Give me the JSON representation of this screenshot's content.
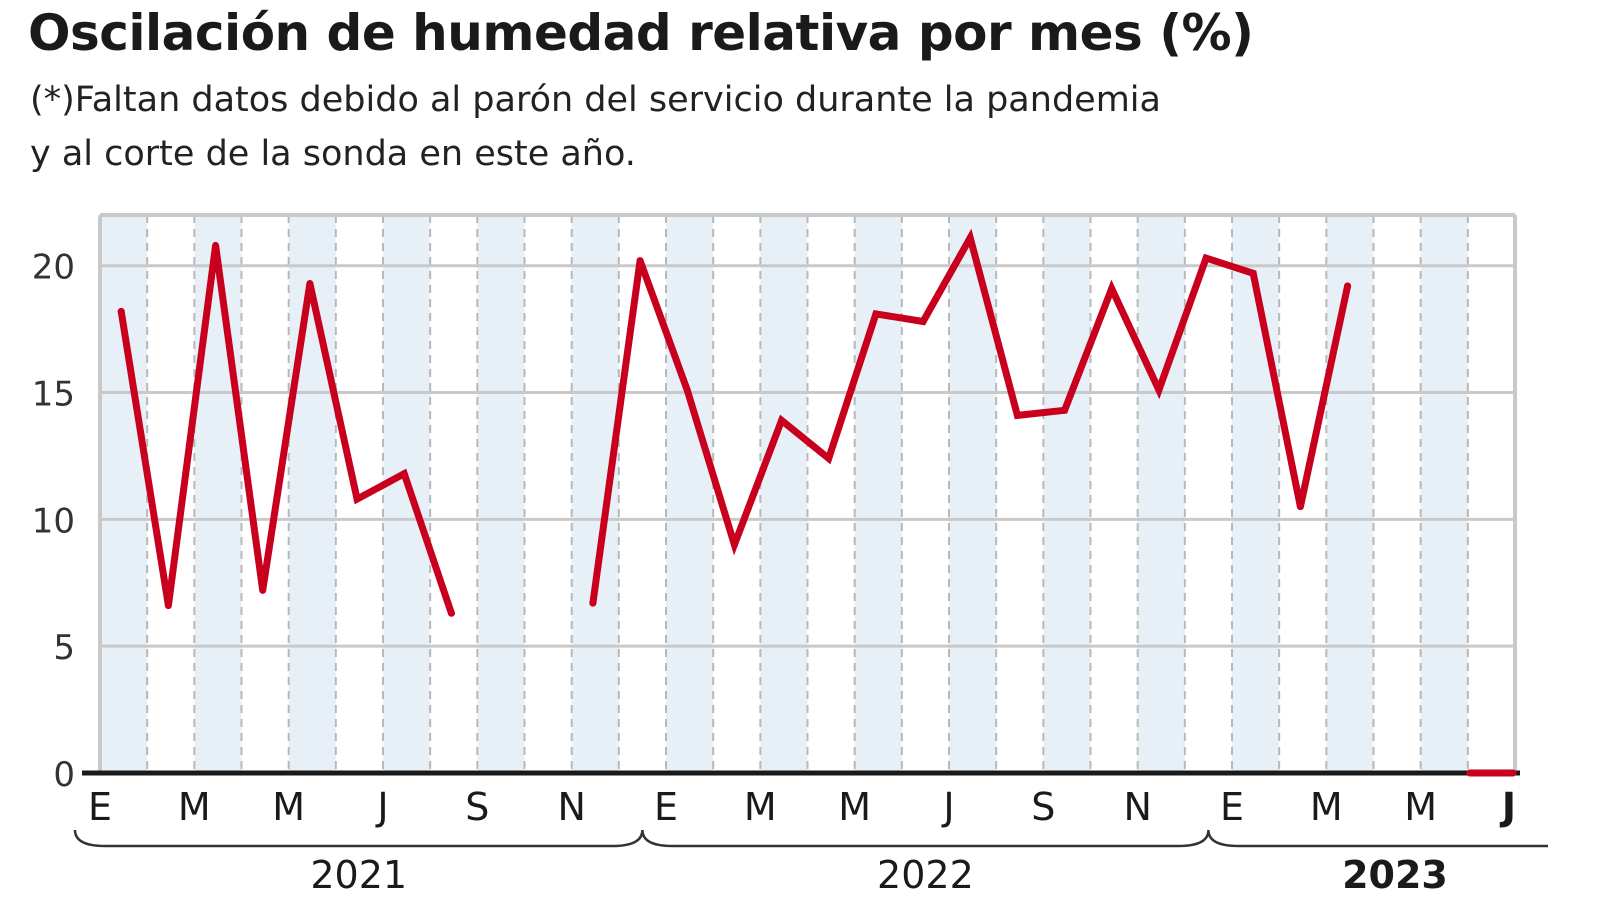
{
  "title": "Oscilación de humedad relativa por mes (%)",
  "subtitle_lines": [
    "(*)Faltan datos debido al parón del servicio durante la pandemia",
    "y al corte de la sonda en este año."
  ],
  "colors": {
    "line": "#c8001e",
    "shade": "#e8f0f7",
    "grid": "#c9c9c9",
    "axis": "#1a1a1a"
  },
  "chart_data": {
    "type": "line",
    "title": "Oscilación de humedad relativa por mes (%)",
    "ylim": [
      0,
      22
    ],
    "yticks": [
      0,
      5,
      10,
      15,
      20
    ],
    "grid": true,
    "x": [
      "2021-01",
      "2021-02",
      "2021-03",
      "2021-04",
      "2021-05",
      "2021-06",
      "2021-07",
      "2021-08",
      "2021-09",
      "2021-10",
      "2021-11",
      "2021-12",
      "2022-01",
      "2022-02",
      "2022-03",
      "2022-04",
      "2022-05",
      "2022-06",
      "2022-07",
      "2022-08",
      "2022-09",
      "2022-10",
      "2022-11",
      "2022-12",
      "2023-01",
      "2023-02",
      "2023-03",
      "2023-04",
      "2023-05",
      "2023-06"
    ],
    "values": [
      18.2,
      6.6,
      20.8,
      7.2,
      19.3,
      10.8,
      11.8,
      6.3,
      null,
      null,
      6.7,
      20.2,
      15.1,
      9.0,
      13.9,
      12.4,
      18.1,
      17.8,
      21.1,
      14.1,
      14.3,
      19.1,
      15.1,
      20.3,
      19.7,
      10.5,
      19.2,
      null,
      null,
      null
    ],
    "current_month_marker": "2023-06",
    "month_tick_labels": [
      {
        "month": "2021-01",
        "label": "E"
      },
      {
        "month": "2021-03",
        "label": "M"
      },
      {
        "month": "2021-05",
        "label": "M"
      },
      {
        "month": "2021-07",
        "label": "J"
      },
      {
        "month": "2021-09",
        "label": "S"
      },
      {
        "month": "2021-11",
        "label": "N"
      },
      {
        "month": "2022-01",
        "label": "E"
      },
      {
        "month": "2022-03",
        "label": "M"
      },
      {
        "month": "2022-05",
        "label": "M"
      },
      {
        "month": "2022-07",
        "label": "J"
      },
      {
        "month": "2022-09",
        "label": "S"
      },
      {
        "month": "2022-11",
        "label": "N"
      },
      {
        "month": "2023-01",
        "label": "E"
      },
      {
        "month": "2023-03",
        "label": "M"
      },
      {
        "month": "2023-05",
        "label": "M"
      },
      {
        "month": "2023-06",
        "label": "J",
        "bold": true
      }
    ],
    "year_labels": [
      {
        "label": "2021",
        "bold": false
      },
      {
        "label": "2022",
        "bold": false
      },
      {
        "label": "2023",
        "bold": true
      }
    ]
  }
}
